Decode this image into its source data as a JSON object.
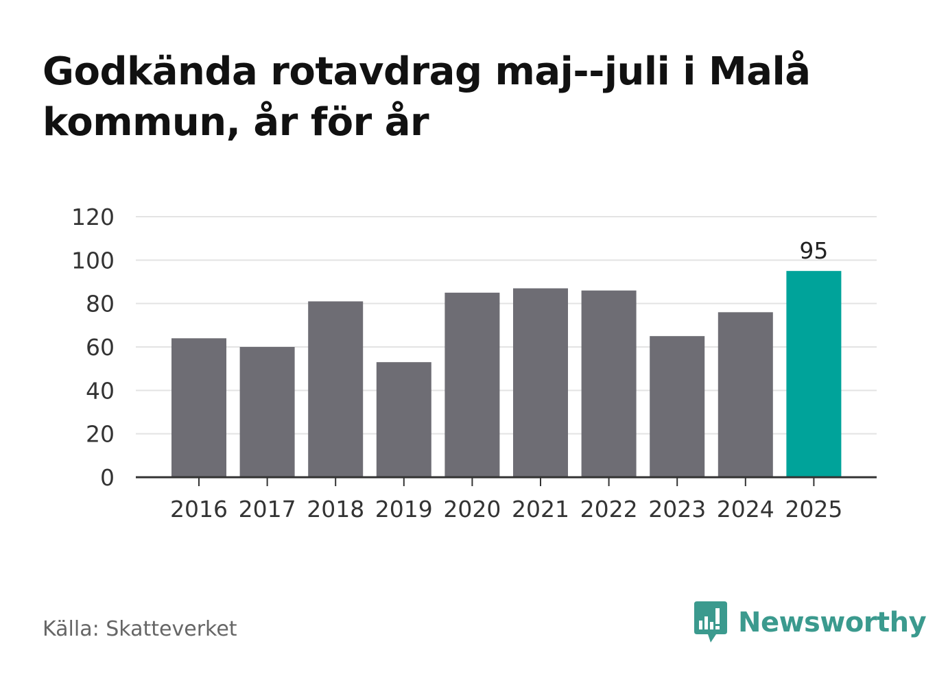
{
  "title": "Godkända rotavdrag maj--juli i Malå kommun, år för år",
  "source": "Källa: Skatteverket",
  "brand": "Newsworthy",
  "colors": {
    "bar": "#6e6d74",
    "highlight": "#00a39a",
    "grid": "#e3e3e3",
    "axis": "#333333",
    "brand": "#3b9a8e"
  },
  "chart_data": {
    "type": "bar",
    "title": "Godkända rotavdrag maj--juli i Malå kommun, år för år",
    "xlabel": "",
    "ylabel": "",
    "categories": [
      "2016",
      "2017",
      "2018",
      "2019",
      "2020",
      "2021",
      "2022",
      "2023",
      "2024",
      "2025"
    ],
    "values": [
      64,
      60,
      81,
      53,
      85,
      87,
      86,
      65,
      76,
      95
    ],
    "highlight_index": 9,
    "data_labels": [
      {
        "index": 9,
        "text": "95"
      }
    ],
    "ylim": [
      0,
      120
    ],
    "yticks": [
      0,
      20,
      40,
      60,
      80,
      100,
      120
    ],
    "grid": true,
    "legend": "none"
  }
}
